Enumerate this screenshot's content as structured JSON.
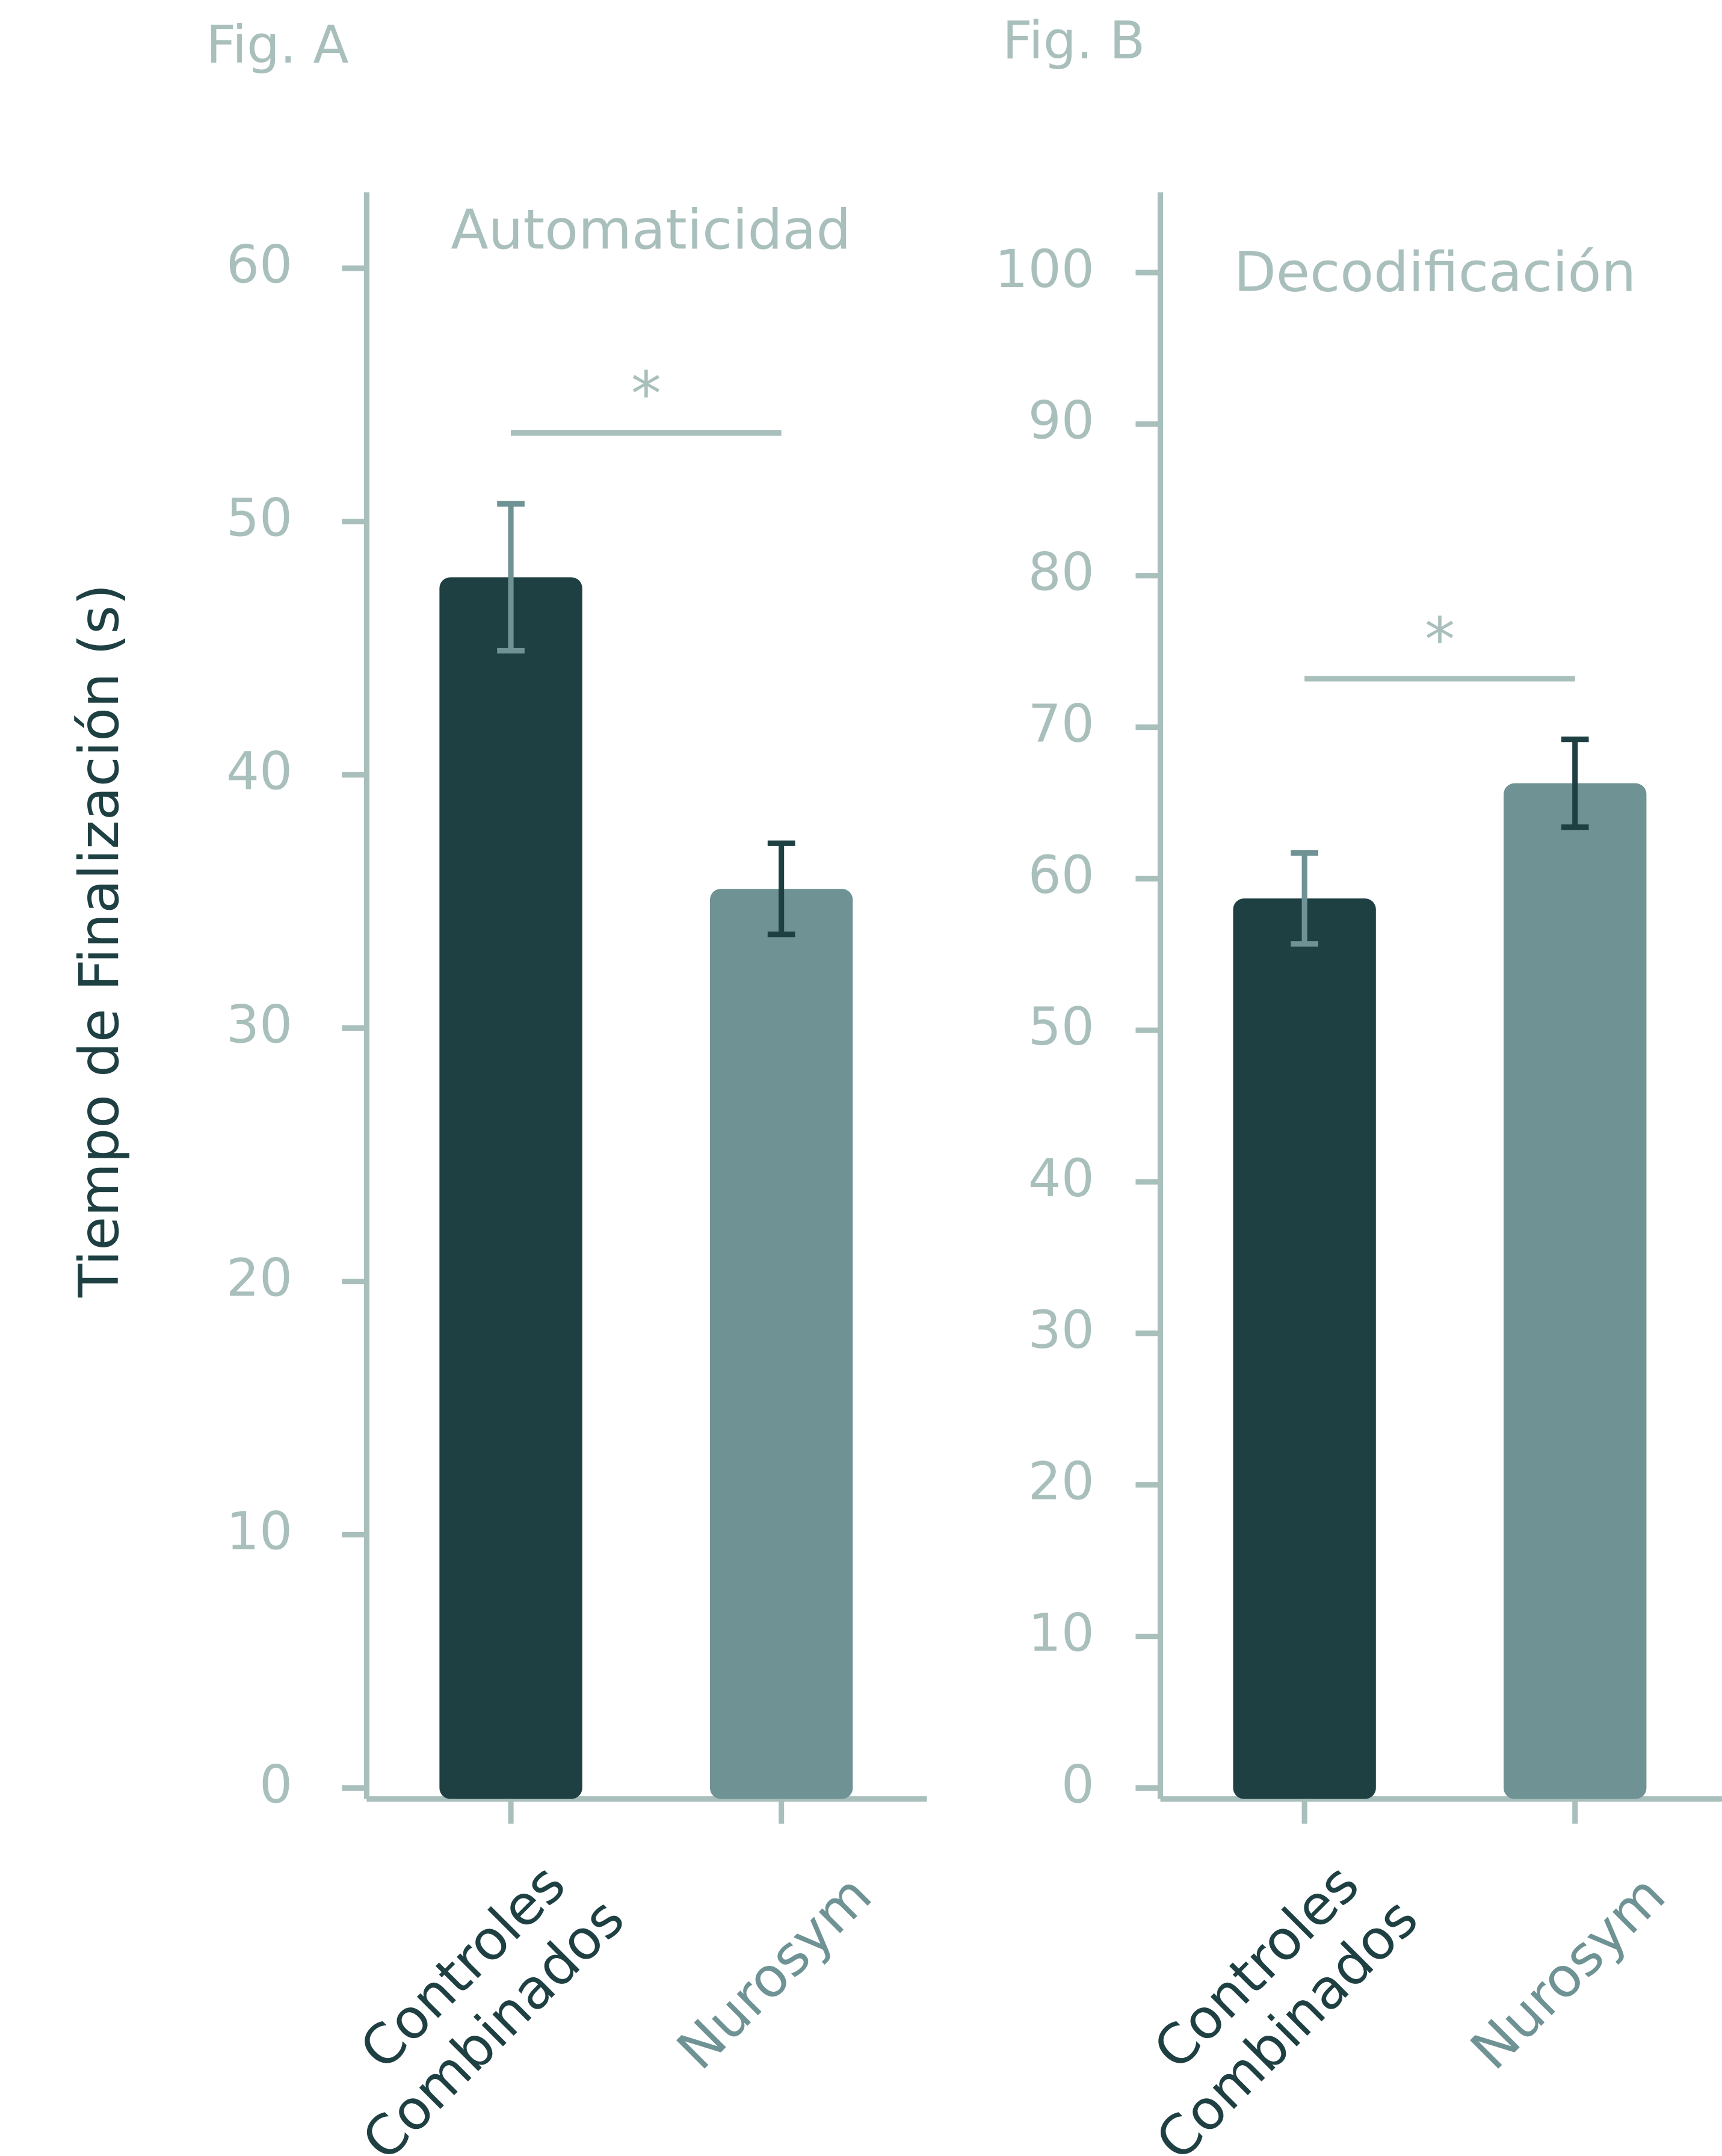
{
  "chart_data": [
    {
      "type": "bar",
      "label": "Fig. A",
      "title": "Automaticidad",
      "ylabel": "Tiempo de Finalización (s)",
      "categories": [
        "Controles Combinados",
        "Nurosym"
      ],
      "values": [
        47.8,
        35.5
      ],
      "errors": [
        2.9,
        1.8
      ],
      "colors": [
        "#1f4042",
        "#6f9294"
      ],
      "error_colors": [
        "#6f9294",
        "#1f4042"
      ],
      "ylim": [
        0,
        63
      ],
      "yticks": [
        0,
        10,
        20,
        30,
        40,
        50,
        60
      ],
      "significance": {
        "label": "*",
        "y": 53.5
      }
    },
    {
      "type": "bar",
      "label": "Fig. B",
      "title": "Decodificación",
      "categories": [
        "Controles Combinados",
        "Nurosym"
      ],
      "values": [
        58.7,
        66.3
      ],
      "errors": [
        3.0,
        2.9
      ],
      "colors": [
        "#1f4042",
        "#6f9294"
      ],
      "error_colors": [
        "#6f9294",
        "#1f4042"
      ],
      "ylim": [
        0,
        105.3
      ],
      "yticks": [
        0,
        10,
        20,
        30,
        40,
        50,
        60,
        70,
        80,
        90,
        100
      ],
      "significance": {
        "label": "*",
        "y": 73.2
      }
    }
  ]
}
